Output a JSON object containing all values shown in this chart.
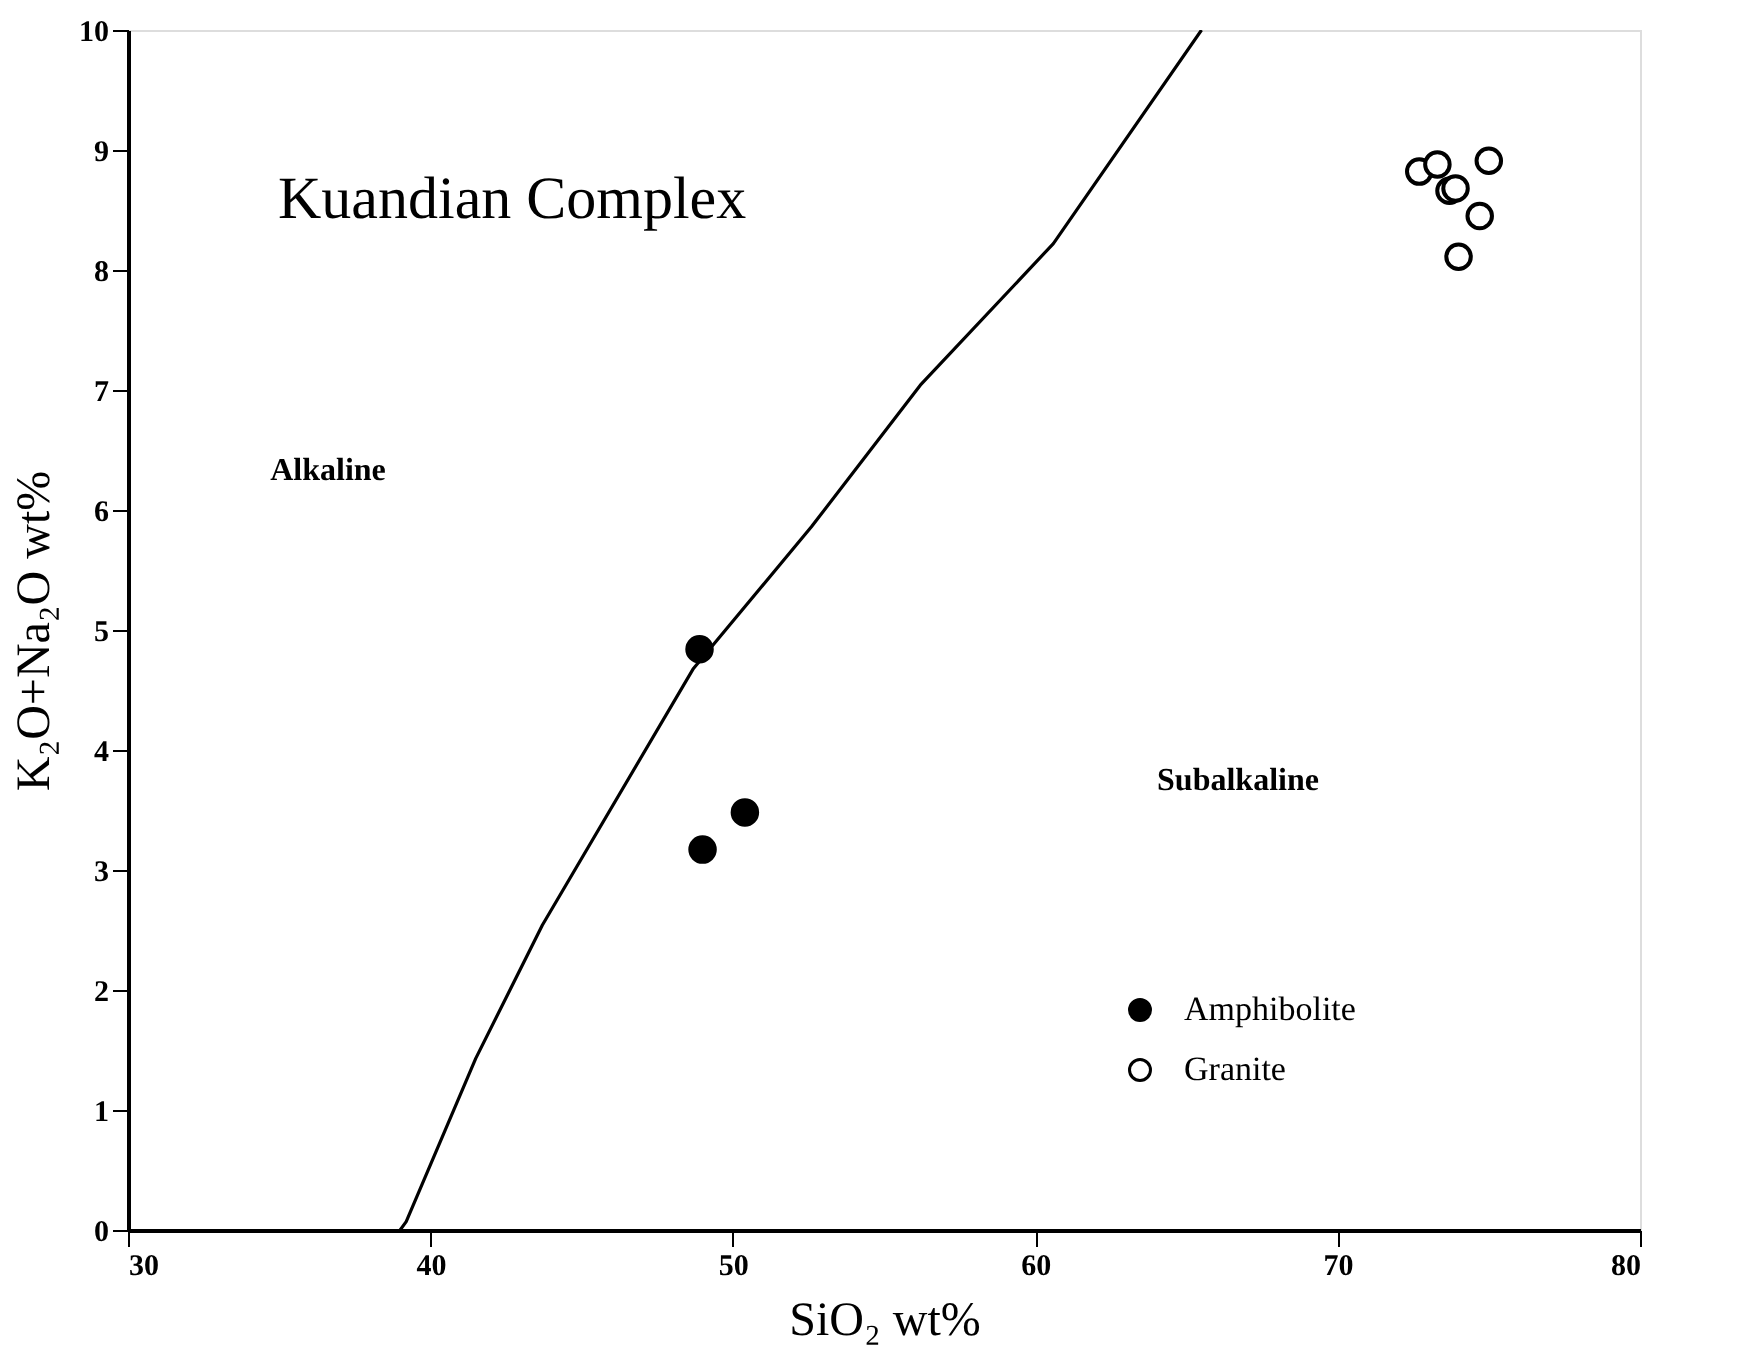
{
  "chart_data": {
    "type": "scatter",
    "title": "Kuandian Complex",
    "xlabel": "SiO₂ wt%",
    "ylabel": "K₂O+Na₂O wt%",
    "xlim": [
      30,
      80
    ],
    "xticks": [
      30,
      40,
      50,
      60,
      70,
      80
    ],
    "ylim": [
      0,
      10
    ],
    "yticks": [
      0,
      1,
      2,
      3,
      4,
      5,
      6,
      7,
      8,
      9,
      10
    ],
    "grid": false,
    "legend": "bottom right",
    "annotations": [
      "Alkaline",
      "Subalkaline"
    ],
    "series": [
      {
        "name": "Amphibolite",
        "marker": "circle",
        "color": "#000000",
        "x": [
          48.9,
          49.0,
          50.4
        ],
        "values": [
          4.84,
          3.17,
          3.48
        ]
      },
      {
        "name": "Granite",
        "marker": "circle",
        "color": "#ffffff",
        "x": [
          72.7,
          73.3,
          73.7,
          73.9,
          75.0,
          74.7,
          74.0
        ],
        "values": [
          8.82,
          8.88,
          8.66,
          8.68,
          8.91,
          8.45,
          8.11
        ]
      },
      {
        "type": "line",
        "color": "#000000",
        "line_style": "solid",
        "x": [
          39.0,
          39.2,
          41.5,
          43.7,
          48.7,
          52.6,
          56.2,
          60.6,
          65.5
        ],
        "values": [
          0.0,
          0.07,
          1.43,
          2.54,
          4.68,
          5.86,
          7.04,
          8.22,
          10.0
        ]
      }
    ]
  }
}
